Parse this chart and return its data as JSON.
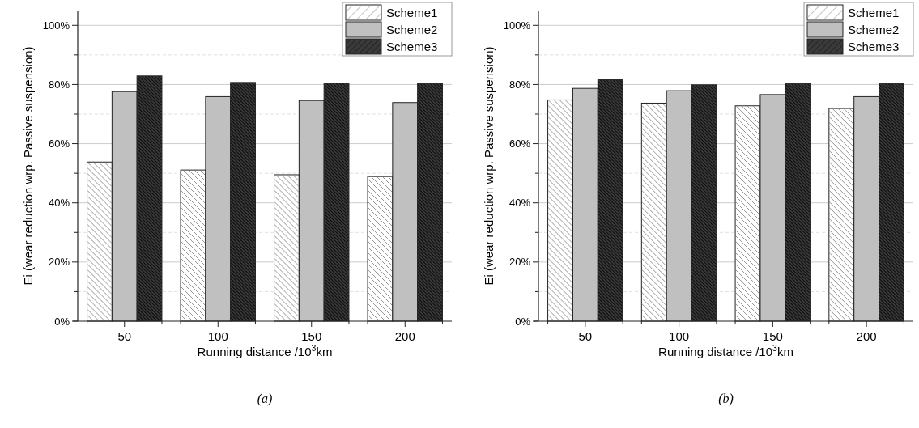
{
  "chart_data": [
    {
      "type": "bar",
      "categories": [
        "50",
        "100",
        "150",
        "200"
      ],
      "xlabel": "Running distance /10$^{3}$km",
      "ylabel": "Ei (wear reduction wrp. Passive suspension)",
      "ylim": [
        0,
        105
      ],
      "yticks": [
        {
          "value": 0,
          "label": "0%"
        },
        {
          "value": 10,
          "label": null
        },
        {
          "value": 20,
          "label": "20%"
        },
        {
          "value": 30,
          "label": null
        },
        {
          "value": 40,
          "label": "40%"
        },
        {
          "value": 50,
          "label": null
        },
        {
          "value": 60,
          "label": "60%"
        },
        {
          "value": 70,
          "label": null
        },
        {
          "value": 80,
          "label": "80%"
        },
        {
          "value": 90,
          "label": null
        },
        {
          "value": 100,
          "label": "100%"
        }
      ],
      "grid": "y",
      "legend": "top right",
      "annotations": [
        "(a)"
      ],
      "series": [
        {
          "name": "Scheme1",
          "color": "#ffffff",
          "values": [
            53.8,
            51.1,
            49.5,
            48.9
          ]
        },
        {
          "name": "Scheme2",
          "color": "#c0c0c0",
          "values": [
            77.6,
            75.9,
            74.6,
            73.9
          ]
        },
        {
          "name": "Scheme3",
          "color": "#3a3a3a",
          "values": [
            82.9,
            80.7,
            80.5,
            80.3
          ]
        }
      ]
    },
    {
      "type": "bar",
      "categories": [
        "50",
        "100",
        "150",
        "200"
      ],
      "xlabel": "Running distance /10$^{3}$km",
      "ylabel": "Ei (wear reduction wrp. Passive suspension)",
      "ylim": [
        0,
        105
      ],
      "yticks": [
        {
          "value": 0,
          "label": "0%"
        },
        {
          "value": 10,
          "label": null
        },
        {
          "value": 20,
          "label": "20%"
        },
        {
          "value": 30,
          "label": null
        },
        {
          "value": 40,
          "label": "40%"
        },
        {
          "value": 50,
          "label": null
        },
        {
          "value": 60,
          "label": "60%"
        },
        {
          "value": 70,
          "label": null
        },
        {
          "value": 80,
          "label": "80%"
        },
        {
          "value": 90,
          "label": null
        },
        {
          "value": 100,
          "label": "100%"
        }
      ],
      "grid": "y",
      "legend": "top right",
      "annotations": [
        "(b)"
      ],
      "series": [
        {
          "name": "Scheme1",
          "color": "#ffffff",
          "values": [
            74.8,
            73.7,
            72.8,
            71.9
          ]
        },
        {
          "name": "Scheme2",
          "color": "#c0c0c0",
          "values": [
            78.7,
            77.9,
            76.6,
            75.9
          ]
        },
        {
          "name": "Scheme3",
          "color": "#3a3a3a",
          "values": [
            81.6,
            79.9,
            80.3,
            80.3
          ]
        }
      ]
    }
  ]
}
